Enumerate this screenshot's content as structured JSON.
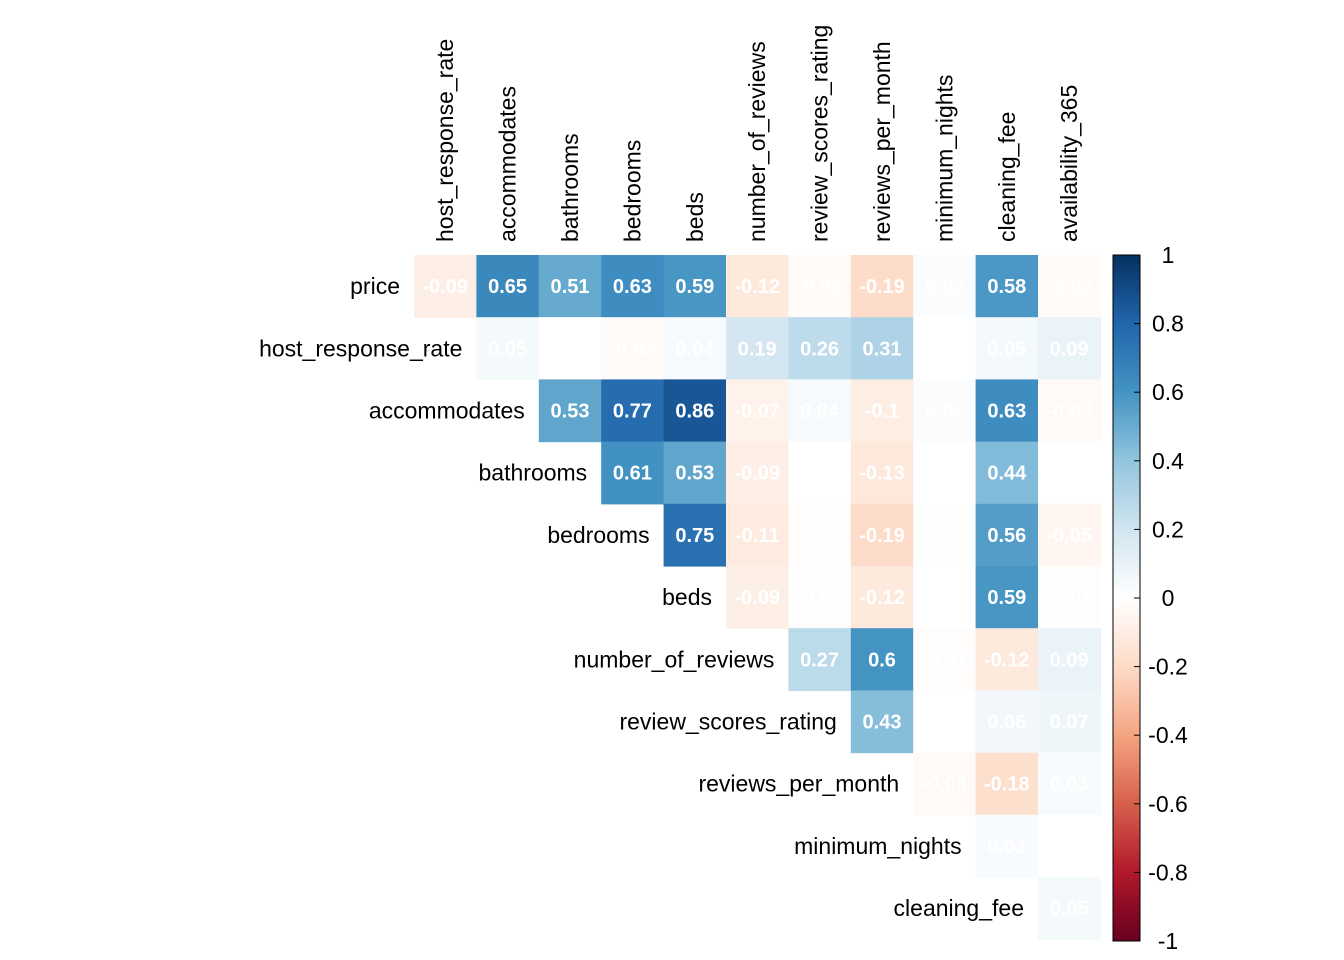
{
  "chart_data": {
    "type": "heatmap",
    "title": "",
    "layout": "upper-triangle",
    "columns": [
      "host_response_rate",
      "accommodates",
      "bathrooms",
      "bedrooms",
      "beds",
      "number_of_reviews",
      "review_scores_rating",
      "reviews_per_month",
      "minimum_nights",
      "cleaning_fee",
      "availability_365"
    ],
    "rows": [
      {
        "label": "price",
        "values": [
          -0.09,
          0.65,
          0.51,
          0.63,
          0.59,
          -0.12,
          -0.02,
          -0.19,
          0.02,
          0.58,
          -0.02
        ]
      },
      {
        "label": "host_response_rate",
        "values": [
          null,
          0.05,
          0,
          -0.02,
          0.04,
          0.19,
          0.26,
          0.31,
          0,
          0.05,
          0.09
        ]
      },
      {
        "label": "accommodates",
        "values": [
          null,
          null,
          0.53,
          0.77,
          0.86,
          -0.07,
          0.04,
          -0.1,
          0.02,
          0.63,
          -0.03
        ]
      },
      {
        "label": "bathrooms",
        "values": [
          null,
          null,
          null,
          0.61,
          0.53,
          -0.09,
          0,
          -0.13,
          0,
          0.44,
          0
        ]
      },
      {
        "label": "bedrooms",
        "values": [
          null,
          null,
          null,
          null,
          0.75,
          -0.11,
          -0.01,
          -0.19,
          0.01,
          0.56,
          -0.05
        ]
      },
      {
        "label": "beds",
        "values": [
          null,
          null,
          null,
          null,
          null,
          -0.09,
          -0.01,
          -0.12,
          0,
          0.59,
          -0.01
        ]
      },
      {
        "label": "number_of_reviews",
        "values": [
          null,
          null,
          null,
          null,
          null,
          null,
          0.27,
          0.6,
          -0.01,
          -0.12,
          0.09
        ]
      },
      {
        "label": "review_scores_rating",
        "values": [
          null,
          null,
          null,
          null,
          null,
          null,
          null,
          0.43,
          0,
          0.06,
          0.07
        ]
      },
      {
        "label": "reviews_per_month",
        "values": [
          null,
          null,
          null,
          null,
          null,
          null,
          null,
          null,
          -0.03,
          -0.18,
          0.03
        ]
      },
      {
        "label": "minimum_nights",
        "values": [
          null,
          null,
          null,
          null,
          null,
          null,
          null,
          null,
          null,
          0.03,
          0
        ]
      },
      {
        "label": "cleaning_fee",
        "values": [
          null,
          null,
          null,
          null,
          null,
          null,
          null,
          null,
          null,
          null,
          0.05
        ]
      }
    ],
    "hidden_values": [
      "0",
      "0",
      "0",
      "0",
      "0",
      "0",
      "0"
    ],
    "colorbar": {
      "range": [
        -1,
        1
      ],
      "ticks": [
        "1",
        "0.8",
        "0.6",
        "0.4",
        "0.2",
        "0",
        "-0.2",
        "-0.4",
        "-0.6",
        "-0.8",
        "-1"
      ],
      "colors": [
        "#67001F",
        "#B2182B",
        "#D6604D",
        "#F4A582",
        "#FDDBC7",
        "#FFFFFF",
        "#D1E5F0",
        "#92C5DE",
        "#4393C3",
        "#2166AC",
        "#053061"
      ]
    }
  }
}
